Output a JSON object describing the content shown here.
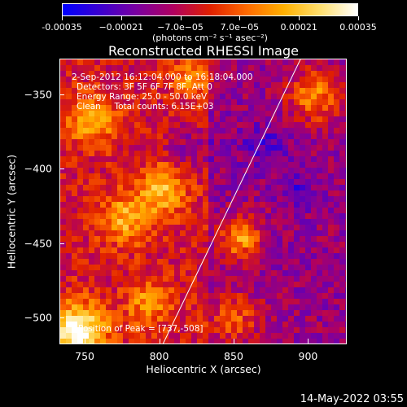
{
  "colorbar": {
    "gradient": [
      "#0000ff",
      "#3a00d0",
      "#7a00a0",
      "#b00060",
      "#e02000",
      "#ff6a00",
      "#ffb000",
      "#ffe070",
      "#ffffff"
    ],
    "ticks": [
      {
        "label": "-0.00035",
        "frac": 0.0
      },
      {
        "label": "−0.00021",
        "frac": 0.2
      },
      {
        "label": "−7.0e−05",
        "frac": 0.4
      },
      {
        "label": "7.0e−05",
        "frac": 0.6
      },
      {
        "label": "0.00021",
        "frac": 0.8
      },
      {
        "label": "0.00035",
        "frac": 1.0
      }
    ],
    "units": "(photons cm⁻² s⁻¹ asec⁻²)"
  },
  "title": "Reconstructed RHESSI Image",
  "info": {
    "line1": "2-Sep-2012 16:12:04.000 to 16:18:04.000",
    "line2": "Detectors: 3F 5F 6F 7F 8F, Att 0",
    "line3": "Energy Range: 25.0 - 50.0 keV",
    "line4": "Clean     Total counts: 6.15E+03",
    "peak": "Position of Peak = [737,-508]"
  },
  "axes": {
    "xlabel": "Heliocentric X (arcsec)",
    "ylabel": "Heliocentric Y (arcsec)",
    "xrange": [
      733,
      926
    ],
    "yrange": [
      -518,
      -326
    ],
    "xticks": [
      {
        "label": "750",
        "value": 750
      },
      {
        "label": "800",
        "value": 800
      },
      {
        "label": "850",
        "value": 850
      },
      {
        "label": "900",
        "value": 900
      }
    ],
    "yticks": [
      {
        "label": "−350",
        "value": -350
      },
      {
        "label": "−400",
        "value": -400
      },
      {
        "label": "−450",
        "value": -450
      },
      {
        "label": "−500",
        "value": -500
      }
    ]
  },
  "timestamp": "14-May-2022 03:55"
}
